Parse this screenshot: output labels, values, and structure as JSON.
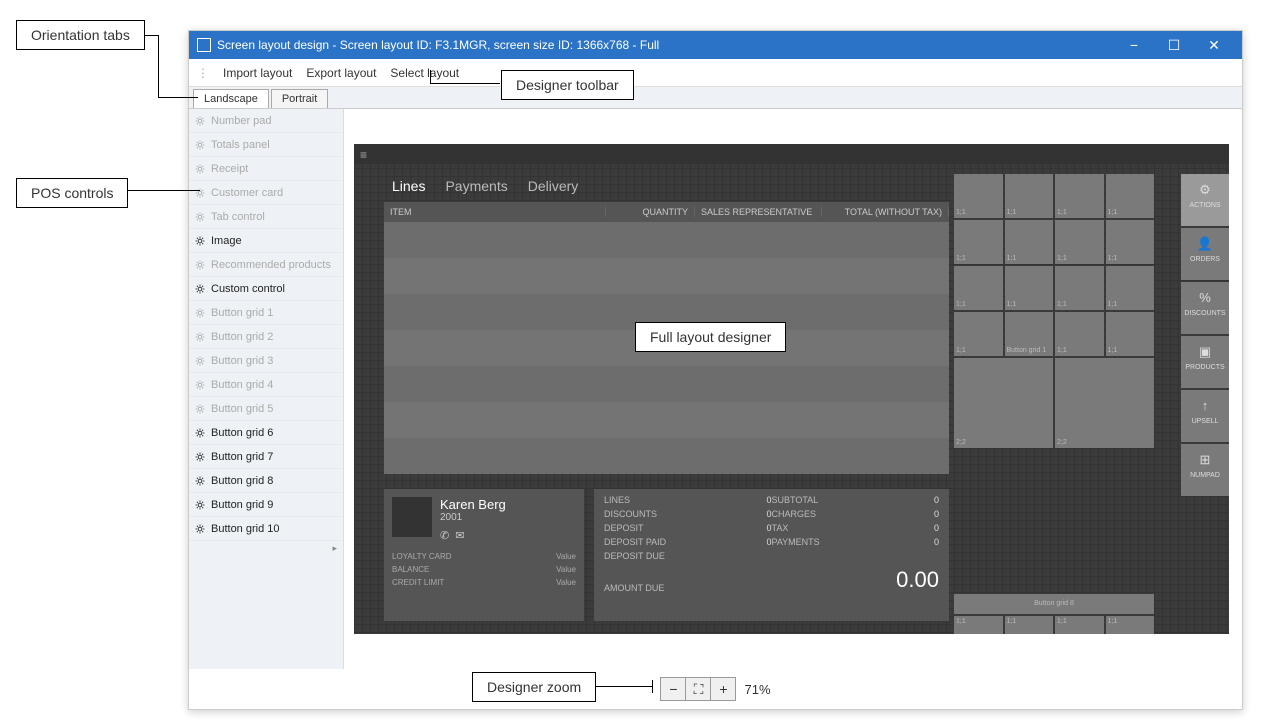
{
  "callouts": {
    "orientation_tabs": "Orientation tabs",
    "pos_controls": "POS controls",
    "designer_toolbar": "Designer toolbar",
    "full_layout_designer": "Full layout designer",
    "designer_zoom": "Designer zoom"
  },
  "titlebar": {
    "title": "Screen layout design - Screen layout ID: F3.1MGR, screen size ID: 1366x768 - Full"
  },
  "toolbar": {
    "import": "Import layout",
    "export": "Export layout",
    "select": "Select layout"
  },
  "orientation": {
    "landscape": "Landscape",
    "portrait": "Portrait"
  },
  "pos_controls": [
    {
      "label": "Number pad",
      "enabled": false
    },
    {
      "label": "Totals panel",
      "enabled": false
    },
    {
      "label": "Receipt",
      "enabled": false
    },
    {
      "label": "Customer card",
      "enabled": false
    },
    {
      "label": "Tab control",
      "enabled": false
    },
    {
      "label": "Image",
      "enabled": true
    },
    {
      "label": "Recommended products",
      "enabled": false
    },
    {
      "label": "Custom control",
      "enabled": true
    },
    {
      "label": "Button grid 1",
      "enabled": false
    },
    {
      "label": "Button grid 2",
      "enabled": false
    },
    {
      "label": "Button grid 3",
      "enabled": false
    },
    {
      "label": "Button grid 4",
      "enabled": false
    },
    {
      "label": "Button grid 5",
      "enabled": false
    },
    {
      "label": "Button grid 6",
      "enabled": true
    },
    {
      "label": "Button grid 7",
      "enabled": true
    },
    {
      "label": "Button grid 8",
      "enabled": true
    },
    {
      "label": "Button grid 9",
      "enabled": true
    },
    {
      "label": "Button grid 10",
      "enabled": true
    }
  ],
  "transaction": {
    "tabs": {
      "lines": "Lines",
      "payments": "Payments",
      "delivery": "Delivery"
    },
    "columns": {
      "item": "ITEM",
      "quantity": "QUANTITY",
      "salesrep": "SALES REPRESENTATIVE",
      "total": "TOTAL (WITHOUT TAX)"
    }
  },
  "customer": {
    "name": "Karen Berg",
    "id": "2001",
    "loyalty_label": "LOYALTY CARD",
    "balance_label": "BALANCE",
    "credit_label": "CREDIT LIMIT",
    "value": "Value"
  },
  "totals": {
    "lines": "LINES",
    "subtotal": "SUBTOTAL",
    "discounts": "DISCOUNTS",
    "charges": "CHARGES",
    "deposit": "DEPOSIT",
    "tax": "TAX",
    "deposit_paid": "DEPOSIT PAID",
    "payments": "PAYMENTS",
    "deposit_due": "DEPOSIT DUE",
    "amount_due": "AMOUNT DUE",
    "zero": "0",
    "amount": "0.00"
  },
  "button_grids": {
    "grid1_cell": "1;1",
    "grid1_label": "Button grid 1",
    "grid2_cell": "2;2",
    "grid8_label": "Button grid 8"
  },
  "right_actions": [
    {
      "label": "ACTIONS",
      "icon": "⚙"
    },
    {
      "label": "ORDERS",
      "icon": "👤"
    },
    {
      "label": "DISCOUNTS",
      "icon": "%"
    },
    {
      "label": "PRODUCTS",
      "icon": "▣"
    },
    {
      "label": "UPSELL",
      "icon": "↑"
    },
    {
      "label": "NUMPAD",
      "icon": "⊞"
    }
  ],
  "zoom": {
    "minus": "−",
    "fit": "⛶",
    "plus": "+",
    "value": "71%"
  },
  "colors": {
    "titlebar": "#2b73c7",
    "canvas_bg": "#3b3b3b",
    "panel_bg": "#555555",
    "button_bg": "#7a7a7a"
  }
}
